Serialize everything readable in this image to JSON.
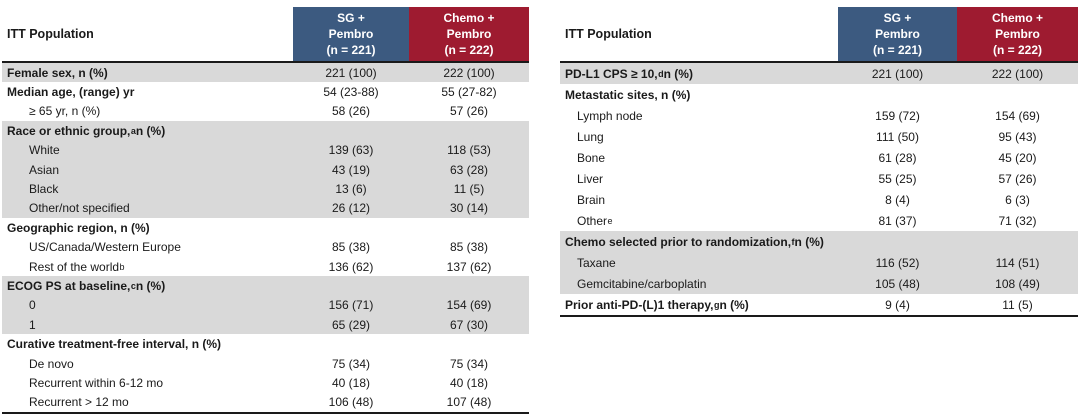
{
  "theme": {
    "sg_pembro_color": "#3C5A80",
    "chemo_pembro_color": "#9E1B30",
    "shaded_row_color": "#D9D9D9",
    "border_color": "#1A1A1A",
    "header_text_color": "#FFFFFF"
  },
  "tables": [
    {
      "corner_label": "ITT Population",
      "columns": [
        {
          "id": "sg-pembro",
          "label": "SG +\nPembro\n(n = 221)",
          "color_key": "sg_pembro_color"
        },
        {
          "id": "chemo-pembro",
          "label": "Chemo +\nPembro\n(n = 222)",
          "color_key": "chemo_pembro_color"
        }
      ],
      "rows": [
        {
          "label": "Female sex, n (%)",
          "sup": "",
          "label_after": "",
          "bold": true,
          "indent": false,
          "shaded": true,
          "values": [
            "221 (100)",
            "222 (100)"
          ]
        },
        {
          "label": "Median age, (range) yr",
          "sup": "",
          "label_after": "",
          "bold": true,
          "indent": false,
          "shaded": false,
          "values": [
            "54 (23-88)",
            "55 (27-82)"
          ]
        },
        {
          "label": "≥ 65 yr, n (%)",
          "sup": "",
          "label_after": "",
          "bold": false,
          "indent": true,
          "shaded": false,
          "values": [
            "58 (26)",
            "57 (26)"
          ]
        },
        {
          "label": "Race or ethnic group,",
          "sup": "a",
          "label_after": " n (%)",
          "bold": true,
          "indent": false,
          "shaded": true,
          "values": [
            "",
            ""
          ]
        },
        {
          "label": "White",
          "sup": "",
          "label_after": "",
          "bold": false,
          "indent": true,
          "shaded": true,
          "values": [
            "139 (63)",
            "118 (53)"
          ]
        },
        {
          "label": "Asian",
          "sup": "",
          "label_after": "",
          "bold": false,
          "indent": true,
          "shaded": true,
          "values": [
            "43 (19)",
            "63 (28)"
          ]
        },
        {
          "label": "Black",
          "sup": "",
          "label_after": "",
          "bold": false,
          "indent": true,
          "shaded": true,
          "values": [
            "13 (6)",
            "11 (5)"
          ]
        },
        {
          "label": "Other/not specified",
          "sup": "",
          "label_after": "",
          "bold": false,
          "indent": true,
          "shaded": true,
          "values": [
            "26 (12)",
            "30 (14)"
          ]
        },
        {
          "label": "Geographic region, n (%)",
          "sup": "",
          "label_after": "",
          "bold": true,
          "indent": false,
          "shaded": false,
          "values": [
            "",
            ""
          ]
        },
        {
          "label": "US/Canada/Western Europe",
          "sup": "",
          "label_after": "",
          "bold": false,
          "indent": true,
          "shaded": false,
          "values": [
            "85 (38)",
            "85 (38)"
          ]
        },
        {
          "label": "Rest of the world",
          "sup": "b",
          "label_after": "",
          "bold": false,
          "indent": true,
          "shaded": false,
          "values": [
            "136 (62)",
            "137 (62)"
          ]
        },
        {
          "label": "ECOG PS at baseline,",
          "sup": "c",
          "label_after": " n (%)",
          "bold": true,
          "indent": false,
          "shaded": true,
          "values": [
            "",
            ""
          ]
        },
        {
          "label": "0",
          "sup": "",
          "label_after": "",
          "bold": false,
          "indent": true,
          "shaded": true,
          "values": [
            "156 (71)",
            "154 (69)"
          ]
        },
        {
          "label": "1",
          "sup": "",
          "label_after": "",
          "bold": false,
          "indent": true,
          "shaded": true,
          "values": [
            "65 (29)",
            "67 (30)"
          ]
        },
        {
          "label": "Curative treatment-free interval, n (%)",
          "sup": "",
          "label_after": "",
          "bold": true,
          "indent": false,
          "shaded": false,
          "values": [
            "",
            ""
          ]
        },
        {
          "label": "De novo",
          "sup": "",
          "label_after": "",
          "bold": false,
          "indent": true,
          "shaded": false,
          "values": [
            "75 (34)",
            "75 (34)"
          ]
        },
        {
          "label": "Recurrent within 6-12 mo",
          "sup": "",
          "label_after": "",
          "bold": false,
          "indent": true,
          "shaded": false,
          "values": [
            "40 (18)",
            "40 (18)"
          ]
        },
        {
          "label": "Recurrent > 12 mo",
          "sup": "",
          "label_after": "",
          "bold": false,
          "indent": true,
          "shaded": false,
          "values": [
            "106 (48)",
            "107 (48)"
          ]
        }
      ]
    },
    {
      "corner_label": "ITT Population",
      "columns": [
        {
          "id": "sg-pembro",
          "label": "SG +\nPembro\n(n = 221)",
          "color_key": "sg_pembro_color"
        },
        {
          "id": "chemo-pembro",
          "label": "Chemo +\nPembro\n(n = 222)",
          "color_key": "chemo_pembro_color"
        }
      ],
      "rows": [
        {
          "label": "PD-L1 CPS ≥ 10,",
          "sup": "d",
          "label_after": " n (%)",
          "bold": true,
          "indent": false,
          "shaded": true,
          "values": [
            "221 (100)",
            "222 (100)"
          ]
        },
        {
          "label": "Metastatic sites, n (%)",
          "sup": "",
          "label_after": "",
          "bold": true,
          "indent": false,
          "shaded": false,
          "values": [
            "",
            ""
          ]
        },
        {
          "label": "Lymph node",
          "sup": "",
          "label_after": "",
          "bold": false,
          "indent": true,
          "shaded": false,
          "values": [
            "159 (72)",
            "154 (69)"
          ]
        },
        {
          "label": "Lung",
          "sup": "",
          "label_after": "",
          "bold": false,
          "indent": true,
          "shaded": false,
          "values": [
            "111 (50)",
            "95 (43)"
          ]
        },
        {
          "label": "Bone",
          "sup": "",
          "label_after": "",
          "bold": false,
          "indent": true,
          "shaded": false,
          "values": [
            "61 (28)",
            "45 (20)"
          ]
        },
        {
          "label": "Liver",
          "sup": "",
          "label_after": "",
          "bold": false,
          "indent": true,
          "shaded": false,
          "values": [
            "55 (25)",
            "57 (26)"
          ]
        },
        {
          "label": "Brain",
          "sup": "",
          "label_after": "",
          "bold": false,
          "indent": true,
          "shaded": false,
          "values": [
            "8 (4)",
            "6 (3)"
          ]
        },
        {
          "label": "Other",
          "sup": "e",
          "label_after": "",
          "bold": false,
          "indent": true,
          "shaded": false,
          "values": [
            "81 (37)",
            "71 (32)"
          ]
        },
        {
          "label": "Chemo selected prior to randomization,",
          "sup": "f",
          "label_after": " n (%)",
          "bold": true,
          "indent": false,
          "shaded": true,
          "values": [
            "",
            ""
          ]
        },
        {
          "label": "Taxane",
          "sup": "",
          "label_after": "",
          "bold": false,
          "indent": true,
          "shaded": true,
          "values": [
            "116 (52)",
            "114 (51)"
          ]
        },
        {
          "label": "Gemcitabine/carboplatin",
          "sup": "",
          "label_after": "",
          "bold": false,
          "indent": true,
          "shaded": true,
          "values": [
            "105 (48)",
            "108 (49)"
          ]
        },
        {
          "label": "Prior anti-PD-(L)1 therapy,",
          "sup": "g",
          "label_after": " n (%)",
          "bold": true,
          "indent": false,
          "shaded": false,
          "values": [
            "9 (4)",
            "11 (5)"
          ]
        }
      ]
    }
  ]
}
